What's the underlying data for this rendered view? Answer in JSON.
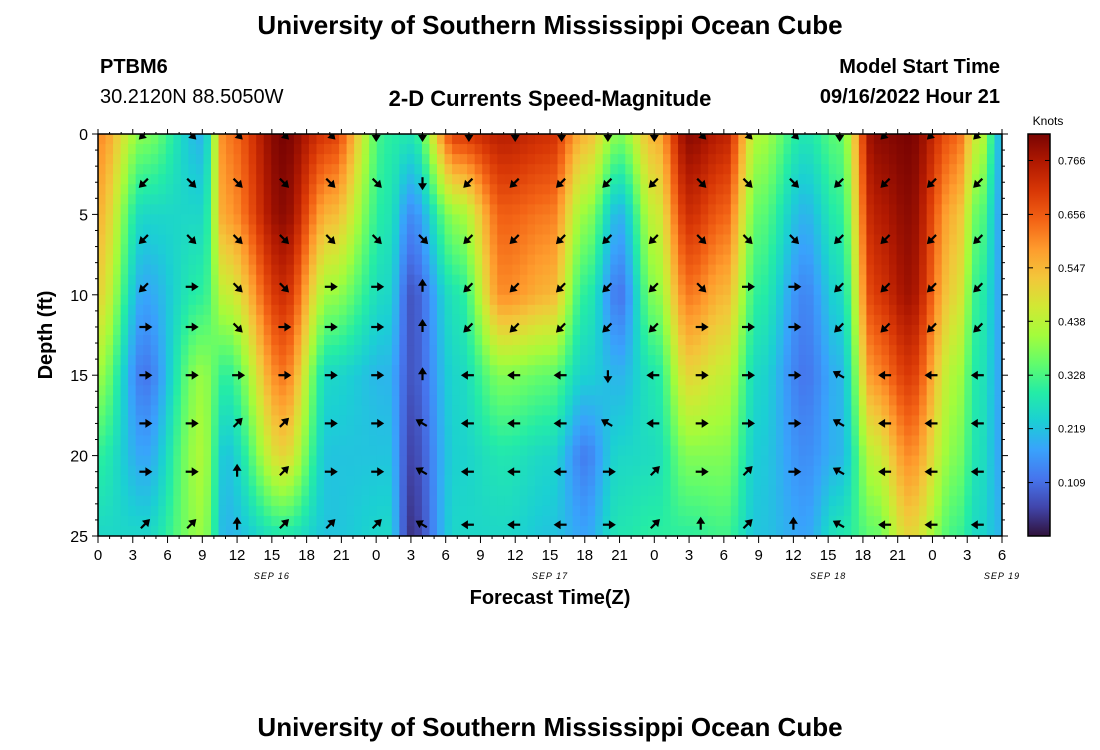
{
  "header": {
    "title": "University of Southern Mississippi Ocean Cube",
    "station_id": "PTBM6",
    "station_coords": "30.2120N  88.5050W",
    "product": "2-D Currents Speed-Magnitude",
    "start_label": "Model Start Time",
    "start_value": "09/16/2022 Hour 21"
  },
  "footer": {
    "title": "University of Southern Mississippi Ocean Cube"
  },
  "chart_data": {
    "type": "heatmap",
    "title": "2-D Currents Speed-Magnitude",
    "xlabel": "Forecast Time(Z)",
    "ylabel": "Depth (ft)",
    "x_hours_range": [
      0,
      78
    ],
    "x_tick_labels": [
      "0",
      "3",
      "6",
      "9",
      "12",
      "15",
      "18",
      "21",
      "0",
      "3",
      "6",
      "9",
      "12",
      "15",
      "18",
      "21",
      "0",
      "3",
      "6",
      "9",
      "12",
      "15",
      "18",
      "21",
      "0",
      "3",
      "6"
    ],
    "date_labels": [
      {
        "text": "SEP 16",
        "hour": 15
      },
      {
        "text": "SEP 17",
        "hour": 39
      },
      {
        "text": "SEP 18",
        "hour": 63
      },
      {
        "text": "SEP 19",
        "hour": 78
      }
    ],
    "y_range": [
      0,
      25
    ],
    "y_ticks": [
      0,
      5,
      10,
      15,
      20,
      25
    ],
    "colorbar": {
      "label": "Knots",
      "min": 0.0,
      "max": 0.82,
      "ticks": [
        "0.766",
        "0.656",
        "0.547",
        "0.438",
        "0.328",
        "0.219",
        "0.109"
      ],
      "tick_values": [
        0.766,
        0.656,
        0.547,
        0.438,
        0.328,
        0.219,
        0.109
      ],
      "colors": [
        "#30123b",
        "#4145ab",
        "#4675ed",
        "#39a2fc",
        "#1bcfd4",
        "#24eca6",
        "#61fc6c",
        "#a4fc3b",
        "#d1e834",
        "#f3c63a",
        "#fe9b2d",
        "#f36315",
        "#d93806",
        "#b11901",
        "#7a0402"
      ]
    },
    "speed_profiles": [
      {
        "hour": 0,
        "speeds": [
          0.6,
          0.55,
          0.5,
          0.4,
          0.3,
          0.25
        ]
      },
      {
        "hour": 4,
        "speeds": [
          0.38,
          0.25,
          0.18,
          0.12,
          0.18,
          0.25
        ]
      },
      {
        "hour": 9,
        "speeds": [
          0.2,
          0.25,
          0.3,
          0.4,
          0.42,
          0.4
        ]
      },
      {
        "hour": 11,
        "speeds": [
          0.62,
          0.58,
          0.45,
          0.3,
          0.22,
          0.2
        ]
      },
      {
        "hour": 16,
        "speeds": [
          0.82,
          0.8,
          0.72,
          0.62,
          0.5,
          0.28
        ]
      },
      {
        "hour": 20,
        "speeds": [
          0.7,
          0.55,
          0.4,
          0.25,
          0.22,
          0.22
        ]
      },
      {
        "hour": 25,
        "speeds": [
          0.3,
          0.28,
          0.25,
          0.2,
          0.22,
          0.25
        ]
      },
      {
        "hour": 27,
        "speeds": [
          0.28,
          0.15,
          0.08,
          0.08,
          0.06,
          0.04
        ]
      },
      {
        "hour": 31,
        "speeds": [
          0.7,
          0.4,
          0.28,
          0.25,
          0.24,
          0.25
        ]
      },
      {
        "hour": 35,
        "speeds": [
          0.75,
          0.65,
          0.6,
          0.38,
          0.28,
          0.25
        ]
      },
      {
        "hour": 39,
        "speeds": [
          0.72,
          0.62,
          0.55,
          0.35,
          0.25,
          0.22
        ]
      },
      {
        "hour": 42,
        "speeds": [
          0.55,
          0.4,
          0.3,
          0.24,
          0.13,
          0.18
        ]
      },
      {
        "hour": 45,
        "speeds": [
          0.38,
          0.2,
          0.12,
          0.2,
          0.25,
          0.28
        ]
      },
      {
        "hour": 48,
        "speeds": [
          0.55,
          0.45,
          0.38,
          0.28,
          0.26,
          0.3
        ]
      },
      {
        "hour": 51,
        "speeds": [
          0.8,
          0.72,
          0.62,
          0.5,
          0.38,
          0.3
        ]
      },
      {
        "hour": 54,
        "speeds": [
          0.75,
          0.65,
          0.55,
          0.45,
          0.38,
          0.32
        ]
      },
      {
        "hour": 57,
        "speeds": [
          0.42,
          0.35,
          0.3,
          0.25,
          0.23,
          0.22
        ]
      },
      {
        "hour": 61,
        "speeds": [
          0.28,
          0.2,
          0.14,
          0.12,
          0.15,
          0.18
        ]
      },
      {
        "hour": 64,
        "speeds": [
          0.35,
          0.3,
          0.25,
          0.2,
          0.2,
          0.28
        ]
      },
      {
        "hour": 67,
        "speeds": [
          0.8,
          0.75,
          0.7,
          0.6,
          0.45,
          0.35
        ]
      },
      {
        "hour": 70,
        "speeds": [
          0.82,
          0.8,
          0.78,
          0.7,
          0.6,
          0.5
        ]
      },
      {
        "hour": 74,
        "speeds": [
          0.65,
          0.55,
          0.5,
          0.42,
          0.38,
          0.32
        ]
      },
      {
        "hour": 76,
        "speeds": [
          0.45,
          0.35,
          0.3,
          0.28,
          0.27,
          0.25
        ]
      },
      {
        "hour": 78,
        "speeds": [
          0.2,
          0.18,
          0.18,
          0.18,
          0.18,
          0.2
        ]
      }
    ],
    "depth_profile_levels": [
      0,
      5,
      10,
      15,
      20,
      25
    ],
    "vector_hours": [
      4,
      8,
      12,
      16,
      20,
      24,
      28,
      32,
      36,
      40,
      44,
      48,
      52,
      56,
      60,
      64,
      68,
      72,
      76
    ],
    "vector_depths": [
      0,
      3,
      6.5,
      9.5,
      12,
      15,
      18,
      21,
      24.3
    ],
    "vector_directions_deg": [
      [
        225,
        315,
        315,
        315,
        315,
        270,
        270,
        270,
        270,
        270,
        270,
        270,
        315,
        315,
        315,
        270,
        225,
        225,
        225
      ],
      [
        225,
        315,
        315,
        315,
        315,
        315,
        270,
        225,
        225,
        225,
        225,
        225,
        315,
        315,
        315,
        225,
        225,
        225,
        225
      ],
      [
        225,
        315,
        315,
        315,
        315,
        315,
        315,
        225,
        225,
        225,
        225,
        225,
        315,
        315,
        315,
        225,
        225,
        225,
        225
      ],
      [
        225,
        0,
        315,
        315,
        0,
        0,
        90,
        225,
        225,
        225,
        225,
        225,
        315,
        0,
        0,
        225,
        225,
        225,
        225
      ],
      [
        0,
        0,
        315,
        0,
        0,
        0,
        90,
        225,
        225,
        225,
        225,
        225,
        0,
        0,
        0,
        225,
        225,
        225,
        225
      ],
      [
        0,
        0,
        0,
        0,
        0,
        0,
        90,
        180,
        180,
        180,
        270,
        180,
        0,
        0,
        0,
        150,
        180,
        180,
        180
      ],
      [
        0,
        0,
        45,
        45,
        0,
        0,
        150,
        180,
        180,
        180,
        150,
        180,
        0,
        0,
        0,
        150,
        180,
        180,
        180
      ],
      [
        0,
        0,
        90,
        45,
        0,
        0,
        150,
        180,
        180,
        180,
        0,
        45,
        0,
        45,
        0,
        150,
        180,
        180,
        180
      ],
      [
        45,
        45,
        90,
        45,
        45,
        45,
        150,
        180,
        180,
        180,
        0,
        45,
        90,
        45,
        90,
        150,
        180,
        180,
        180
      ]
    ]
  }
}
